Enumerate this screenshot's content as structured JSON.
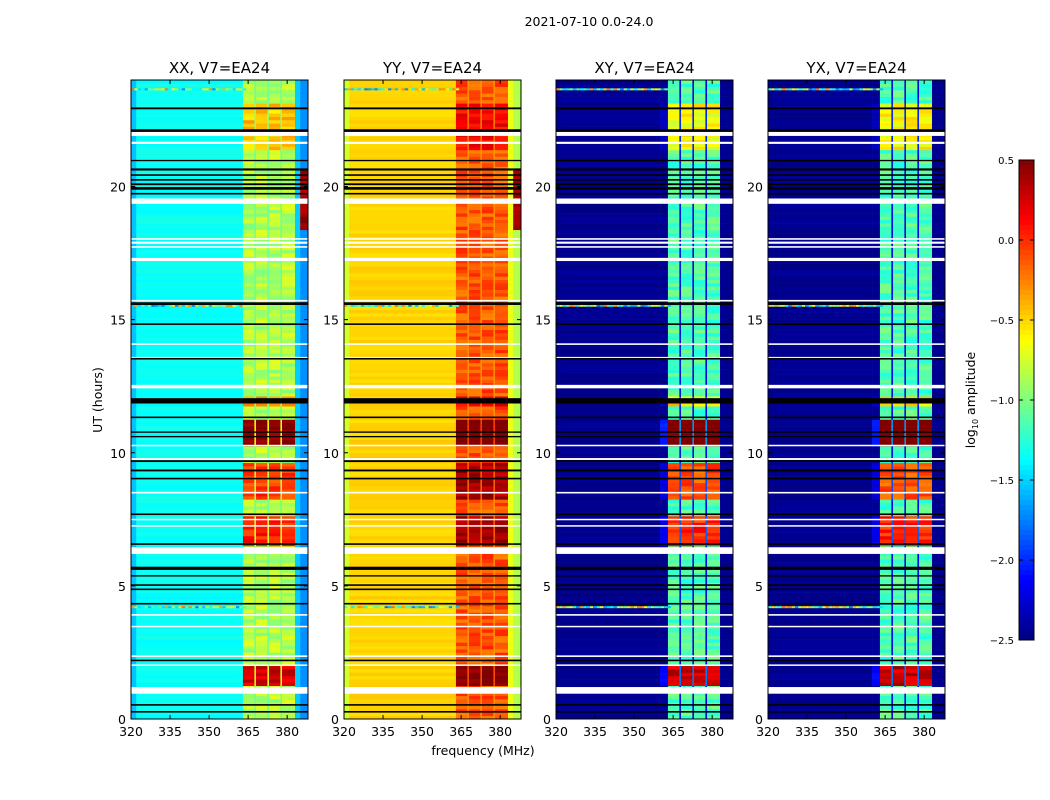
{
  "chart_data": {
    "type": "heatmap",
    "title": "2021-07-10 0.0-24.0",
    "xlabel": "frequency (MHz)",
    "ylabel": "UT (hours)",
    "xlim": [
      320,
      388
    ],
    "ylim": [
      0,
      24
    ],
    "xticks": [
      "320",
      "335",
      "350",
      "365",
      "380"
    ],
    "xtick_values": [
      320,
      335,
      350,
      365,
      380
    ],
    "yticks": [
      "0",
      "5",
      "10",
      "15",
      "20"
    ],
    "ytick_values": [
      0,
      5,
      10,
      15,
      20
    ],
    "panels": [
      {
        "title": "XX, V7=EA24",
        "continuum": -1.35,
        "edge_low": -0.2,
        "edge_high": -0.35,
        "band": -0.85,
        "gap": -1.05,
        "boost_scale": 1.0
      },
      {
        "title": "YY, V7=EA24",
        "continuum": -0.5,
        "edge_low": -0.25,
        "edge_high": -0.35,
        "band": -0.12,
        "gap": -0.3,
        "boost_scale": 0.6
      },
      {
        "title": "XY, V7=EA24",
        "continuum": -2.45,
        "edge_low": 0.0,
        "edge_high": 0.0,
        "band": -1.15,
        "gap": -2.2,
        "boost_scale": 1.3
      },
      {
        "title": "YX, V7=EA24",
        "continuum": -2.45,
        "edge_low": 0.0,
        "edge_high": 0.0,
        "band": -1.15,
        "gap": -2.2,
        "boost_scale": 1.3
      }
    ],
    "rfi_bands_mhz": [
      [
        363,
        367.4
      ],
      [
        368,
        372.4
      ],
      [
        373,
        377.4
      ],
      [
        378,
        383
      ]
    ],
    "bright_intervals_hours": [
      {
        "start": 1.2,
        "end": 2.05,
        "delta": 1.1
      },
      {
        "start": 6.5,
        "end": 7.6,
        "delta": 0.9
      },
      {
        "start": 8.3,
        "end": 9.6,
        "delta": 0.8
      },
      {
        "start": 10.2,
        "end": 11.3,
        "delta": 1.35
      },
      {
        "start": 11.7,
        "end": 12.1,
        "delta": 0.5
      },
      {
        "start": 21.4,
        "end": 23.1,
        "delta": 0.4
      }
    ],
    "edge_flare_hours": [
      [
        18.4,
        20.6
      ]
    ],
    "rfi_rows_hours": [
      23.65,
      15.52,
      4.2
    ],
    "flagged_white_hours": [
      [
        21.9,
        22.1
      ],
      [
        21.6,
        21.68
      ],
      [
        19.35,
        19.55
      ],
      [
        18.0,
        18.06
      ],
      [
        17.85,
        17.93
      ],
      [
        17.7,
        17.76
      ],
      [
        17.2,
        17.32
      ],
      [
        15.68,
        15.74
      ],
      [
        14.05,
        14.11
      ],
      [
        13.55,
        13.6
      ],
      [
        12.42,
        12.55
      ],
      [
        10.25,
        10.3
      ],
      [
        9.73,
        9.8
      ],
      [
        8.47,
        8.53
      ],
      [
        7.47,
        7.52
      ],
      [
        7.23,
        7.28
      ],
      [
        6.2,
        6.45
      ],
      [
        3.88,
        3.94
      ],
      [
        3.45,
        3.5
      ],
      [
        2.33,
        2.39
      ],
      [
        2.0,
        2.05
      ],
      [
        0.95,
        1.2
      ]
    ],
    "flagged_black_hours": [
      [
        22.9,
        22.97
      ],
      [
        22.05,
        22.15
      ],
      [
        20.95,
        21.0
      ],
      [
        20.6,
        20.68
      ],
      [
        20.4,
        20.46
      ],
      [
        20.22,
        20.28
      ],
      [
        20.05,
        20.12
      ],
      [
        19.88,
        19.98
      ],
      [
        19.7,
        19.76
      ],
      [
        15.55,
        15.65
      ],
      [
        14.8,
        14.86
      ],
      [
        13.5,
        13.56
      ],
      [
        11.85,
        12.05
      ],
      [
        11.3,
        11.36
      ],
      [
        10.75,
        10.8
      ],
      [
        10.58,
        10.63
      ],
      [
        9.65,
        9.72
      ],
      [
        9.3,
        9.37
      ],
      [
        9.0,
        9.06
      ],
      [
        7.66,
        7.72
      ],
      [
        6.54,
        6.6
      ],
      [
        5.6,
        5.72
      ],
      [
        5.35,
        5.4
      ],
      [
        5.0,
        5.06
      ],
      [
        4.84,
        4.9
      ],
      [
        4.3,
        4.36
      ],
      [
        2.17,
        2.23
      ],
      [
        0.5,
        0.56
      ],
      [
        0.24,
        0.3
      ]
    ],
    "colorbar": {
      "label_prefix": "log",
      "label_sub": "10",
      "label_suffix": " amplitude",
      "cmap": "jet",
      "vmin": -2.5,
      "vmax": 0.5,
      "ticks": [
        "0.5",
        "0.0",
        "−0.5",
        "−1.0",
        "−1.5",
        "−2.0",
        "−2.5"
      ],
      "tick_values": [
        0.5,
        0.0,
        -0.5,
        -1.0,
        -1.5,
        -2.0,
        -2.5
      ]
    }
  }
}
